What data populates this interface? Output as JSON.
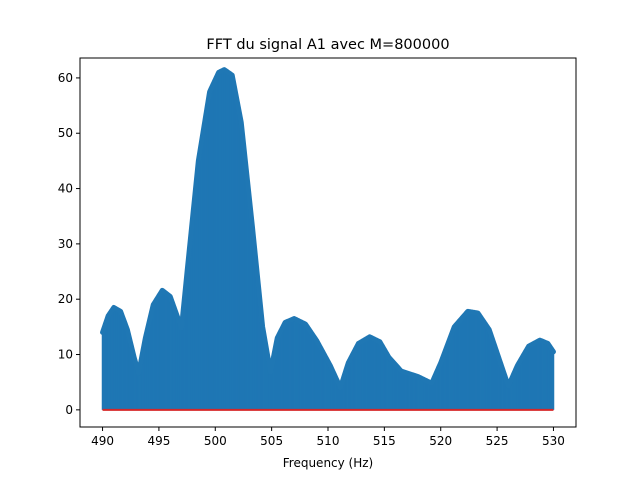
{
  "chart_data": {
    "type": "stem",
    "title": "FFT du signal A1 avec M=800000",
    "xlabel": "Frequency (Hz)",
    "ylabel": "",
    "xlim": [
      488.0,
      532.0
    ],
    "ylim": [
      -3.1,
      63.6
    ],
    "xticks": [
      490,
      495,
      500,
      505,
      510,
      515,
      520,
      525,
      530
    ],
    "yticks": [
      0,
      10,
      20,
      30,
      40,
      50,
      60
    ],
    "grid": false,
    "stem_color": "#1f77b4",
    "baseline_color": "#d62728",
    "baseline_y": 0,
    "x_range": [
      490,
      530
    ],
    "envelope": [
      [
        490.0,
        14.0
      ],
      [
        490.5,
        17.0
      ],
      [
        491.0,
        18.5
      ],
      [
        491.6,
        17.8
      ],
      [
        492.2,
        14.5
      ],
      [
        492.8,
        9.5
      ],
      [
        493.2,
        6.6
      ],
      [
        493.8,
        13.0
      ],
      [
        494.5,
        19.0
      ],
      [
        495.3,
        21.6
      ],
      [
        496.0,
        20.5
      ],
      [
        496.7,
        16.5
      ],
      [
        497.0,
        14.8
      ],
      [
        497.5,
        25.0
      ],
      [
        498.5,
        45.0
      ],
      [
        499.5,
        57.5
      ],
      [
        500.3,
        61.0
      ],
      [
        500.8,
        61.5
      ],
      [
        501.5,
        60.5
      ],
      [
        502.3,
        52.0
      ],
      [
        503.3,
        33.0
      ],
      [
        504.2,
        15.0
      ],
      [
        504.9,
        6.8
      ],
      [
        505.5,
        13.0
      ],
      [
        506.2,
        15.8
      ],
      [
        507.0,
        16.5
      ],
      [
        508.0,
        15.5
      ],
      [
        509.0,
        12.5
      ],
      [
        510.2,
        8.0
      ],
      [
        511.1,
        4.0
      ],
      [
        511.8,
        8.5
      ],
      [
        512.7,
        12.0
      ],
      [
        513.7,
        13.2
      ],
      [
        514.6,
        12.3
      ],
      [
        515.4,
        9.5
      ],
      [
        516.5,
        7.0
      ],
      [
        518.0,
        6.0
      ],
      [
        519.2,
        4.8
      ],
      [
        520.0,
        8.5
      ],
      [
        521.2,
        15.0
      ],
      [
        522.4,
        17.8
      ],
      [
        523.3,
        17.5
      ],
      [
        524.3,
        14.5
      ],
      [
        525.3,
        8.5
      ],
      [
        526.0,
        4.3
      ],
      [
        526.8,
        8.0
      ],
      [
        527.8,
        11.5
      ],
      [
        528.8,
        12.6
      ],
      [
        529.5,
        12.0
      ],
      [
        530.0,
        10.5
      ]
    ]
  }
}
